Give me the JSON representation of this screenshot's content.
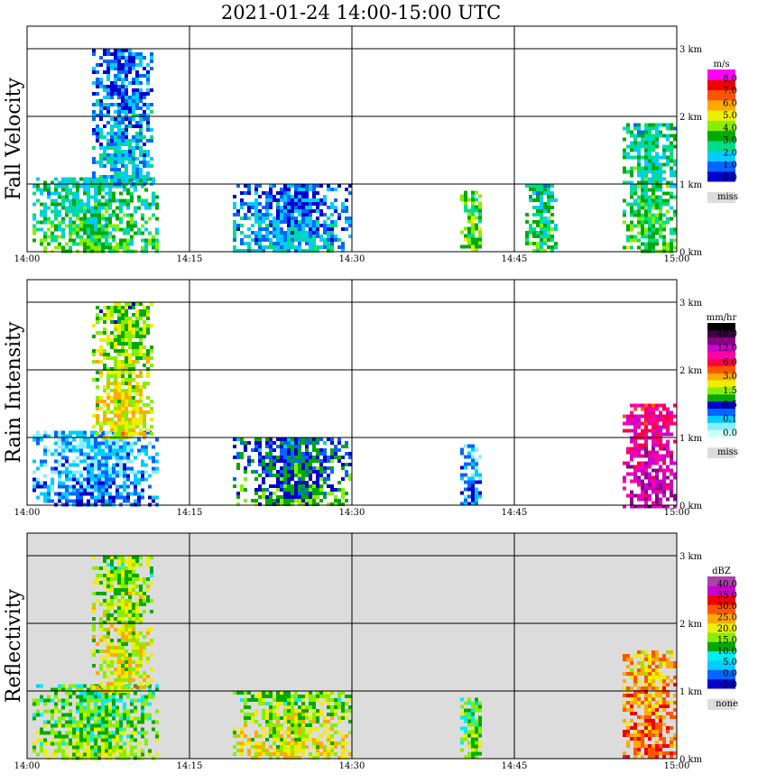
{
  "title": "2021-01-24   14:00-15:00 UTC",
  "x_ticks": [
    "14:00",
    "14:15",
    "14:30",
    "14:45",
    "15:00"
  ],
  "y_ticks": [
    "0 km",
    "1 km",
    "2 km",
    "3 km"
  ],
  "panels": [
    {
      "name": "Fall Velocity",
      "background": "#ffffff",
      "colorbar": {
        "unit": "m/s",
        "colors": [
          "#0000cc",
          "#0066ff",
          "#00ccff",
          "#00dd88",
          "#00aa00",
          "#88ee00",
          "#eeee00",
          "#ffaa00",
          "#ff5500",
          "#ee0000",
          "#ff00ff"
        ],
        "labels": [
          "0.0",
          "1.0",
          "2.0",
          "3.0",
          "4.0",
          "5.0",
          "6.0",
          "7.0",
          "8.0"
        ],
        "missing_label": "miss",
        "missing_color": "#dcdcdc"
      }
    },
    {
      "name": "Rain Intensity",
      "background": "#ffffff",
      "colorbar": {
        "unit": "mm/hr",
        "colors": [
          "#ccffff",
          "#88eeff",
          "#00ccff",
          "#0066ff",
          "#0000cc",
          "#00aa00",
          "#88ee00",
          "#eeee00",
          "#ffaa00",
          "#ff5500",
          "#ff0044",
          "#ff00aa",
          "#cc00cc",
          "#880088",
          "#440044",
          "#000000"
        ],
        "labels": [
          "0.0",
          "0.1",
          "0.5",
          "1.5",
          "3.0",
          "6.0",
          "12.0",
          "48.0"
        ],
        "missing_label": "miss",
        "missing_color": "#dcdcdc"
      }
    },
    {
      "name": "Reflectivity",
      "background": "#dcdcdc",
      "colorbar": {
        "unit": "dBZ",
        "colors": [
          "#0000cc",
          "#0066ff",
          "#00ccff",
          "#00eeee",
          "#00aa00",
          "#88ee00",
          "#eeee00",
          "#ffaa00",
          "#ff5500",
          "#ee0000",
          "#cc00cc",
          "#aa44aa"
        ],
        "labels": [
          "-5.0",
          "0.0",
          "5.0",
          "10.0",
          "15.0",
          "20.0",
          "25.0",
          "30.0",
          "35.0",
          "40.0"
        ],
        "missing_label": "none",
        "missing_color": "#dcdcdc"
      }
    }
  ],
  "chart_data": [
    {
      "type": "heatmap",
      "title": "Fall Velocity",
      "x_range": [
        "14:00",
        "15:00"
      ],
      "y_range_km": [
        0,
        3.2
      ],
      "units": "m/s",
      "echo_regions": [
        {
          "t_start_min": 0.5,
          "t_end_min": 12,
          "h_bottom_km": 0.0,
          "h_top_km": 1.1,
          "value": 2.0
        },
        {
          "t_start_min": 6,
          "t_end_min": 11.5,
          "h_bottom_km": 1.0,
          "h_top_km": 3.0,
          "value": 1.0
        },
        {
          "t_start_min": 19,
          "t_end_min": 30,
          "h_bottom_km": 0.0,
          "h_top_km": 1.0,
          "value": 1.0
        },
        {
          "t_start_min": 40,
          "t_end_min": 42,
          "h_bottom_km": 0.0,
          "h_top_km": 0.9,
          "value": 3.0
        },
        {
          "t_start_min": 46,
          "t_end_min": 49,
          "h_bottom_km": 0.0,
          "h_top_km": 1.0,
          "value": 2.0
        },
        {
          "t_start_min": 55,
          "t_end_min": 60,
          "h_bottom_km": 0.0,
          "h_top_km": 1.9,
          "value": 2.0
        }
      ]
    },
    {
      "type": "heatmap",
      "title": "Rain Intensity",
      "x_range": [
        "14:00",
        "15:00"
      ],
      "y_range_km": [
        0,
        3.2
      ],
      "units": "mm/hr",
      "echo_regions": [
        {
          "t_start_min": 0.5,
          "t_end_min": 12,
          "h_bottom_km": 0.0,
          "h_top_km": 1.1,
          "value": 0.1
        },
        {
          "t_start_min": 6,
          "t_end_min": 11.5,
          "h_bottom_km": 1.0,
          "h_top_km": 3.0,
          "value": 1.5
        },
        {
          "t_start_min": 19,
          "t_end_min": 30,
          "h_bottom_km": 0.0,
          "h_top_km": 1.0,
          "value": 0.5
        },
        {
          "t_start_min": 40,
          "t_end_min": 42,
          "h_bottom_km": 0.0,
          "h_top_km": 0.9,
          "value": 0.1
        },
        {
          "t_start_min": 55,
          "t_end_min": 60,
          "h_bottom_km": 0.0,
          "h_top_km": 1.5,
          "value": 6.0
        }
      ]
    },
    {
      "type": "heatmap",
      "title": "Reflectivity",
      "x_range": [
        "14:00",
        "15:00"
      ],
      "y_range_km": [
        0,
        3.2
      ],
      "units": "dBZ",
      "echo_regions": [
        {
          "t_start_min": 0.5,
          "t_end_min": 12,
          "h_bottom_km": 0.0,
          "h_top_km": 1.1,
          "value": 10.0
        },
        {
          "t_start_min": 6,
          "t_end_min": 11.5,
          "h_bottom_km": 1.0,
          "h_top_km": 3.0,
          "value": 15.0
        },
        {
          "t_start_min": 19,
          "t_end_min": 30,
          "h_bottom_km": 0.0,
          "h_top_km": 1.0,
          "value": 15.0
        },
        {
          "t_start_min": 40,
          "t_end_min": 42,
          "h_bottom_km": 0.0,
          "h_top_km": 0.9,
          "value": 10.0
        },
        {
          "t_start_min": 55,
          "t_end_min": 60,
          "h_bottom_km": 0.0,
          "h_top_km": 1.6,
          "value": 25.0
        }
      ]
    }
  ]
}
